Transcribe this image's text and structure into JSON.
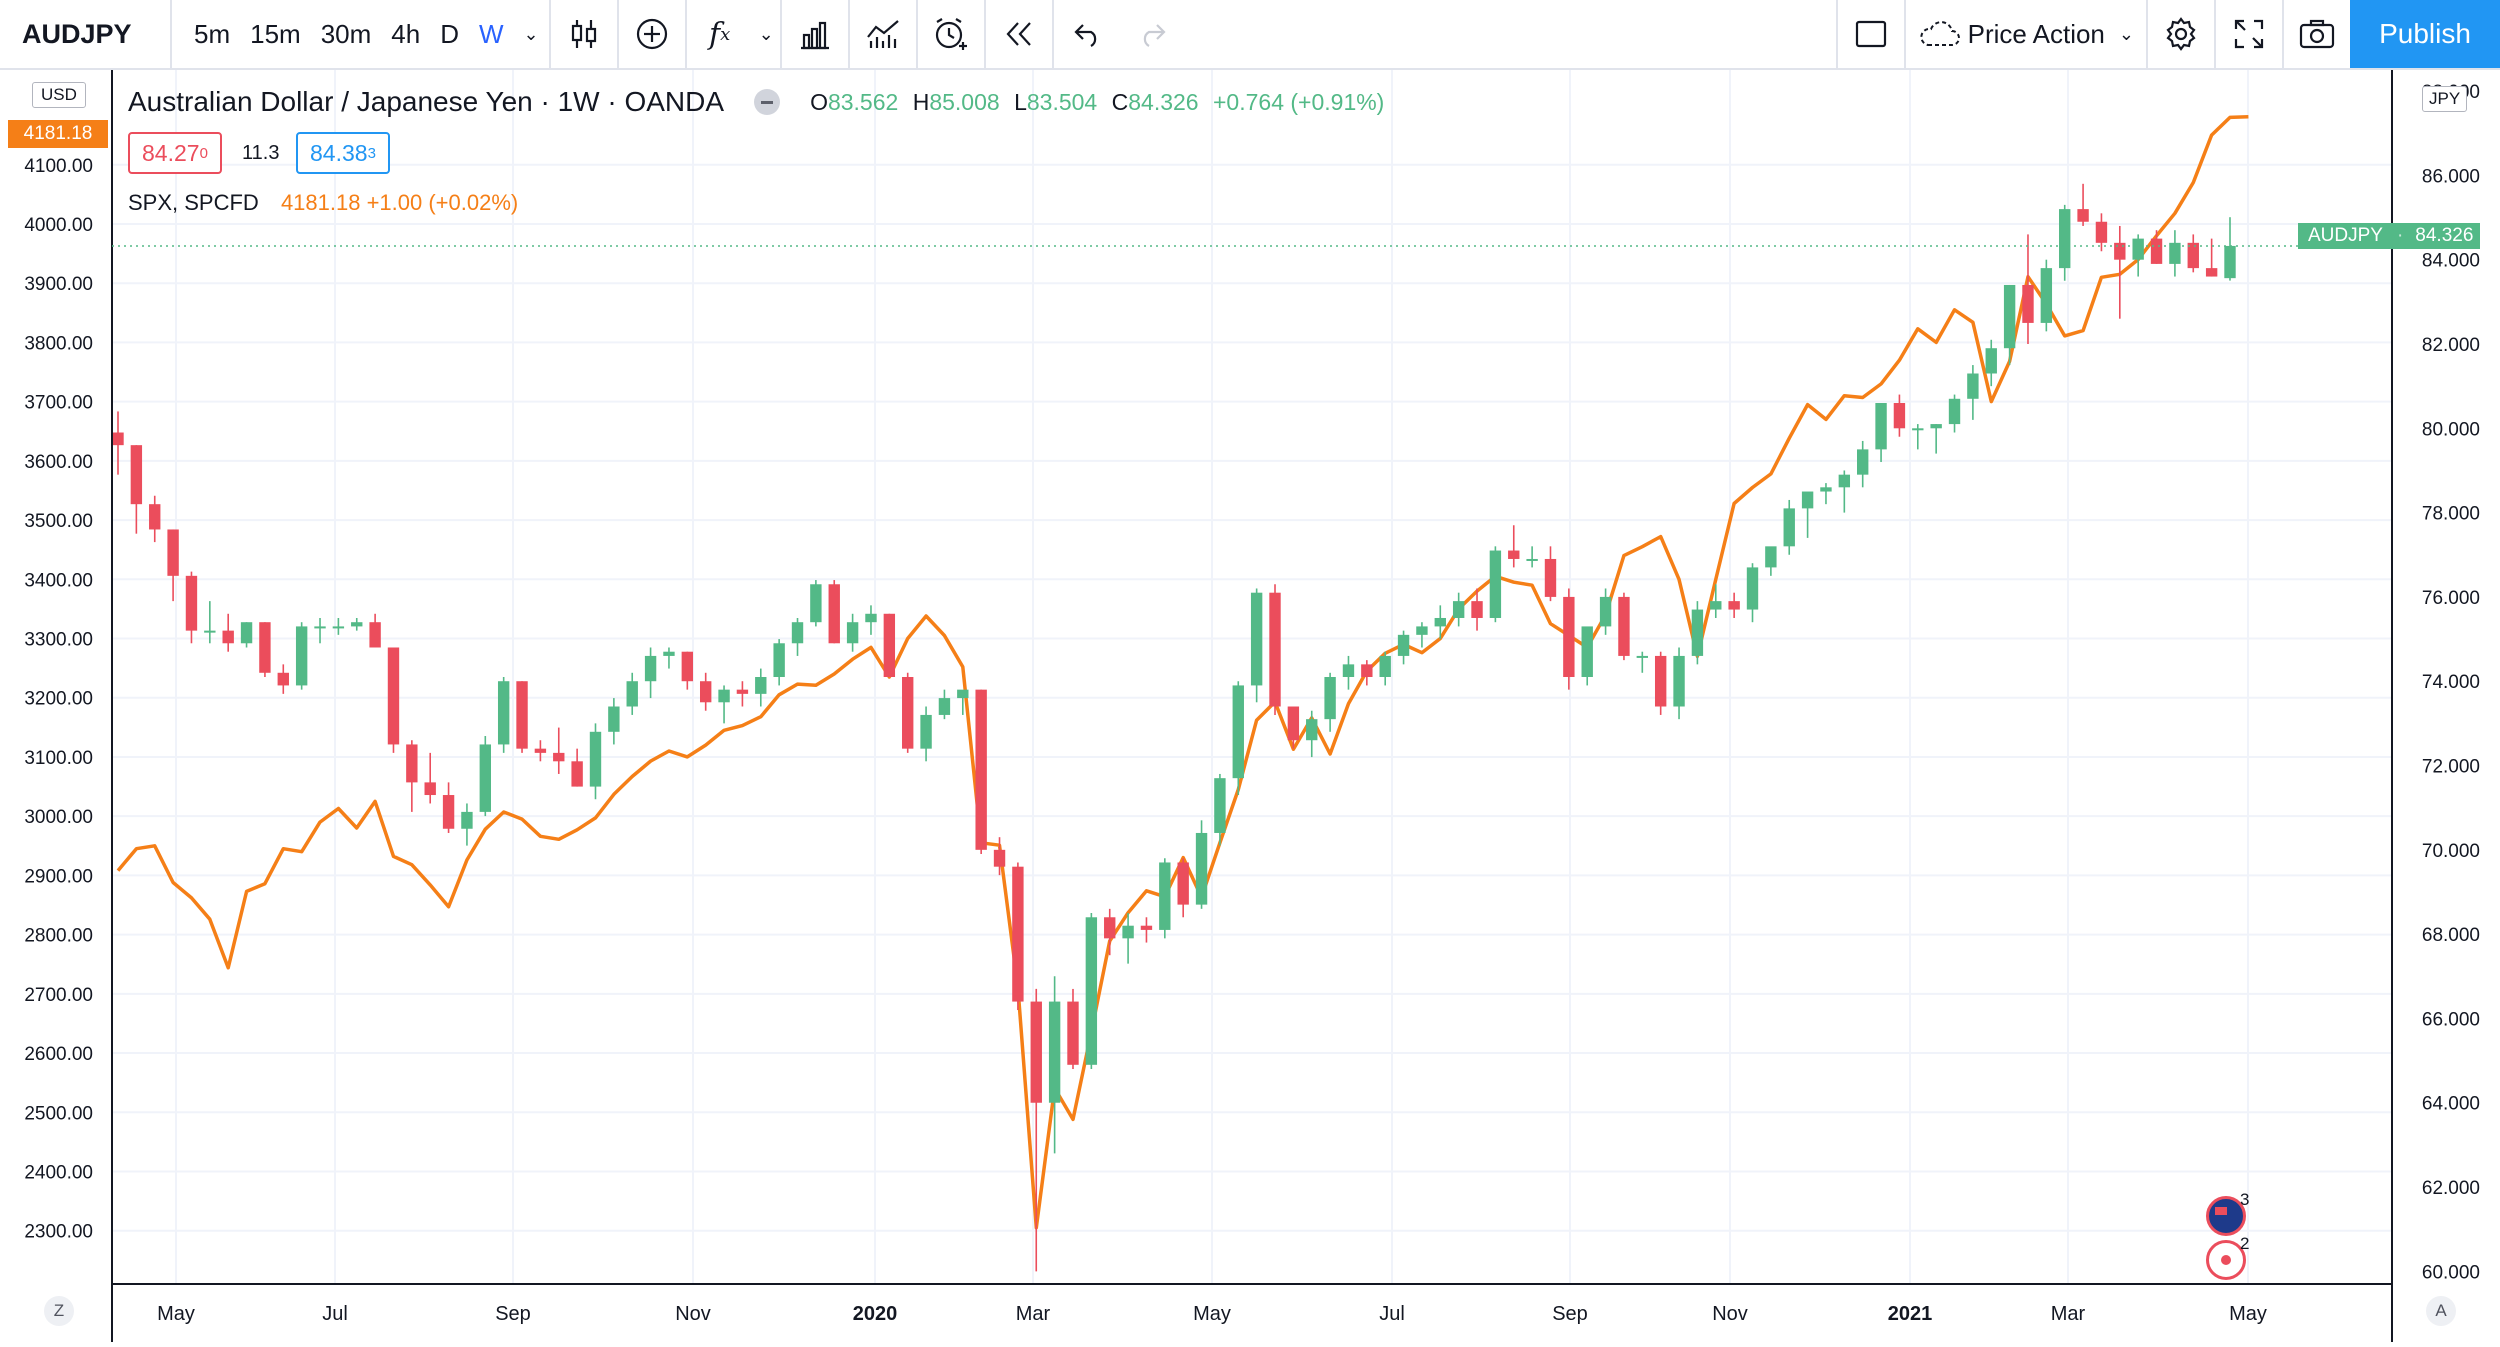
{
  "toolbar": {
    "symbol": "AUDJPY",
    "intervals": [
      "5m",
      "15m",
      "30m",
      "4h",
      "D",
      "W"
    ],
    "active_interval": "W",
    "template": "Price Action",
    "publish_label": "Publish"
  },
  "legend": {
    "title": "Australian Dollar / Japanese Yen · 1W · OANDA",
    "open_label": "O",
    "open": "83.562",
    "high_label": "H",
    "high": "85.008",
    "low_label": "L",
    "low": "83.504",
    "close_label": "C",
    "close": "84.326",
    "change": "+0.764 (+0.91%)",
    "bid": "84.27",
    "bid_sup": "0",
    "spread": "11.3",
    "ask": "84.38",
    "ask_sup": "3",
    "overlay_name": "SPX, SPCFD",
    "overlay_value": "4181.18 +1.00 (+0.02%)"
  },
  "left_axis": {
    "currency": "USD",
    "price_tag": "4181.18",
    "ticks": [
      "4100.00",
      "4000.00",
      "3900.00",
      "3800.00",
      "3700.00",
      "3600.00",
      "3500.00",
      "3400.00",
      "3300.00",
      "3200.00",
      "3100.00",
      "3000.00",
      "2900.00",
      "2800.00",
      "2700.00",
      "2600.00",
      "2500.00",
      "2400.00",
      "2300.00"
    ]
  },
  "right_axis": {
    "currency": "JPY",
    "top_tick": "88.000",
    "ticks": [
      "86.000",
      "84.000",
      "82.000",
      "80.000",
      "78.000",
      "76.000",
      "74.000",
      "72.000",
      "70.000",
      "68.000",
      "66.000",
      "64.000",
      "62.000",
      "60.000"
    ],
    "price_tag_symbol": "AUDJPY",
    "price_tag_value": "84.326"
  },
  "time_axis": {
    "labels": [
      "May",
      "Jul",
      "Sep",
      "Nov",
      "2020",
      "Mar",
      "May",
      "Jul",
      "Sep",
      "Nov",
      "2021",
      "Mar",
      "May"
    ]
  },
  "bottom": {
    "left_btn": "Z",
    "right_btn": "A"
  },
  "events": {
    "au_count": "3",
    "jp_count": "2"
  },
  "colors": {
    "up": "#53b987",
    "down": "#eb4d5c",
    "spx": "#f57f17",
    "accent": "#2962ff"
  },
  "chart_data": {
    "type": "candlestick",
    "title": "Australian Dollar / Japanese Yen · 1W · OANDA",
    "x_range": [
      "2019-04",
      "2021-05"
    ],
    "ylim_right": [
      59.7,
      88.5
    ],
    "ylim_left": [
      2210,
      4260
    ],
    "series": [
      {
        "name": "AUDJPY",
        "candles": [
          [
            79.9,
            80.4,
            78.9,
            79.6
          ],
          [
            79.6,
            79.6,
            77.5,
            78.2
          ],
          [
            78.2,
            78.4,
            77.3,
            77.6
          ],
          [
            77.6,
            77.6,
            75.9,
            76.5
          ],
          [
            76.5,
            76.6,
            74.9,
            75.2
          ],
          [
            75.2,
            75.9,
            74.9,
            75.2
          ],
          [
            75.2,
            75.6,
            74.7,
            74.9
          ],
          [
            74.9,
            75.4,
            74.8,
            75.4
          ],
          [
            75.4,
            75.4,
            74.1,
            74.2
          ],
          [
            74.2,
            74.4,
            73.7,
            73.9
          ],
          [
            73.9,
            75.4,
            73.8,
            75.3
          ],
          [
            75.3,
            75.5,
            74.9,
            75.3
          ],
          [
            75.3,
            75.5,
            75.1,
            75.3
          ],
          [
            75.3,
            75.5,
            75.2,
            75.4
          ],
          [
            75.4,
            75.6,
            74.8,
            74.8
          ],
          [
            74.8,
            74.8,
            72.3,
            72.5
          ],
          [
            72.5,
            72.6,
            70.9,
            71.6
          ],
          [
            71.6,
            72.3,
            71.1,
            71.3
          ],
          [
            71.3,
            71.6,
            70.4,
            70.5
          ],
          [
            70.5,
            71.1,
            70.1,
            70.9
          ],
          [
            70.9,
            72.7,
            70.8,
            72.5
          ],
          [
            72.5,
            74.1,
            72.3,
            74.0
          ],
          [
            74.0,
            74.0,
            72.3,
            72.4
          ],
          [
            72.4,
            72.6,
            72.1,
            72.3
          ],
          [
            72.3,
            72.9,
            71.8,
            72.1
          ],
          [
            72.1,
            72.4,
            71.5,
            71.5
          ],
          [
            71.5,
            73.0,
            71.2,
            72.8
          ],
          [
            72.8,
            73.6,
            72.5,
            73.4
          ],
          [
            73.4,
            74.2,
            73.2,
            74.0
          ],
          [
            74.0,
            74.8,
            73.6,
            74.6
          ],
          [
            74.6,
            74.8,
            74.3,
            74.7
          ],
          [
            74.7,
            74.7,
            73.8,
            74.0
          ],
          [
            74.0,
            74.2,
            73.3,
            73.5
          ],
          [
            73.5,
            73.9,
            73.0,
            73.8
          ],
          [
            73.8,
            74.0,
            73.4,
            73.7
          ],
          [
            73.7,
            74.3,
            73.4,
            74.1
          ],
          [
            74.1,
            75.0,
            73.9,
            74.9
          ],
          [
            74.9,
            75.5,
            74.6,
            75.4
          ],
          [
            75.4,
            76.4,
            75.3,
            76.3
          ],
          [
            76.3,
            76.4,
            74.9,
            74.9
          ],
          [
            74.9,
            75.6,
            74.7,
            75.4
          ],
          [
            75.4,
            75.8,
            75.1,
            75.6
          ],
          [
            75.6,
            75.6,
            74.1,
            74.1
          ],
          [
            74.1,
            74.2,
            72.3,
            72.4
          ],
          [
            72.4,
            73.4,
            72.1,
            73.2
          ],
          [
            73.2,
            73.8,
            73.1,
            73.6
          ],
          [
            73.6,
            73.7,
            73.2,
            73.8
          ],
          [
            73.8,
            73.8,
            69.9,
            70.0
          ],
          [
            70.0,
            70.3,
            69.4,
            69.6
          ],
          [
            69.6,
            69.7,
            66.2,
            66.4
          ],
          [
            66.4,
            66.7,
            60.0,
            64.0
          ],
          [
            64.0,
            67.0,
            62.8,
            66.4
          ],
          [
            66.4,
            66.7,
            64.8,
            64.9
          ],
          [
            64.9,
            68.5,
            64.8,
            68.4
          ],
          [
            68.4,
            68.6,
            67.5,
            67.9
          ],
          [
            67.9,
            68.5,
            67.3,
            68.2
          ],
          [
            68.2,
            68.4,
            67.8,
            68.1
          ],
          [
            68.1,
            69.8,
            67.9,
            69.7
          ],
          [
            69.7,
            69.8,
            68.4,
            68.7
          ],
          [
            68.7,
            70.7,
            68.6,
            70.4
          ],
          [
            70.4,
            71.8,
            70.1,
            71.7
          ],
          [
            71.7,
            74.0,
            71.3,
            73.9
          ],
          [
            73.9,
            76.2,
            73.5,
            76.1
          ],
          [
            76.1,
            76.3,
            73.2,
            73.4
          ],
          [
            73.4,
            73.4,
            72.4,
            72.6
          ],
          [
            72.6,
            73.3,
            72.2,
            73.1
          ],
          [
            73.1,
            74.2,
            72.8,
            74.1
          ],
          [
            74.1,
            74.6,
            73.8,
            74.4
          ],
          [
            74.4,
            74.5,
            73.9,
            74.1
          ],
          [
            74.1,
            74.7,
            73.9,
            74.6
          ],
          [
            74.6,
            75.2,
            74.4,
            75.1
          ],
          [
            75.1,
            75.4,
            74.8,
            75.3
          ],
          [
            75.3,
            75.8,
            75.0,
            75.5
          ],
          [
            75.5,
            76.1,
            75.3,
            75.9
          ],
          [
            75.9,
            76.2,
            75.2,
            75.5
          ],
          [
            75.5,
            77.2,
            75.4,
            77.1
          ],
          [
            77.1,
            77.7,
            76.7,
            76.9
          ],
          [
            76.9,
            77.2,
            76.7,
            76.9
          ],
          [
            76.9,
            77.2,
            75.9,
            76.0
          ],
          [
            76.0,
            76.2,
            73.8,
            74.1
          ],
          [
            74.1,
            75.2,
            73.9,
            75.3
          ],
          [
            75.3,
            76.2,
            75.1,
            76.0
          ],
          [
            76.0,
            76.1,
            74.5,
            74.6
          ],
          [
            74.6,
            74.7,
            74.2,
            74.6
          ],
          [
            74.6,
            74.7,
            73.2,
            73.4
          ],
          [
            73.4,
            74.8,
            73.1,
            74.6
          ],
          [
            74.6,
            75.9,
            74.4,
            75.7
          ],
          [
            75.7,
            76.3,
            75.5,
            75.9
          ],
          [
            75.9,
            76.1,
            75.5,
            75.7
          ],
          [
            75.7,
            76.8,
            75.4,
            76.7
          ],
          [
            76.7,
            77.0,
            76.5,
            77.2
          ],
          [
            77.2,
            78.3,
            77.0,
            78.1
          ],
          [
            78.1,
            78.4,
            77.4,
            78.5
          ],
          [
            78.5,
            78.7,
            78.2,
            78.6
          ],
          [
            78.6,
            79.0,
            78.0,
            78.9
          ],
          [
            78.9,
            79.7,
            78.6,
            79.5
          ],
          [
            79.5,
            80.6,
            79.2,
            80.6
          ],
          [
            80.6,
            80.8,
            79.8,
            80.0
          ],
          [
            80.0,
            80.1,
            79.5,
            80.0
          ],
          [
            80.0,
            80.1,
            79.4,
            80.1
          ],
          [
            80.1,
            80.8,
            79.9,
            80.7
          ],
          [
            80.7,
            81.5,
            80.2,
            81.3
          ],
          [
            81.3,
            82.1,
            81.0,
            81.9
          ],
          [
            81.9,
            83.4,
            81.5,
            83.4
          ],
          [
            83.4,
            84.6,
            82.0,
            82.5
          ],
          [
            82.5,
            84.0,
            82.3,
            83.8
          ],
          [
            83.8,
            85.3,
            83.5,
            85.2
          ],
          [
            85.2,
            85.8,
            84.8,
            84.9
          ],
          [
            84.9,
            85.1,
            84.2,
            84.4
          ],
          [
            84.4,
            84.8,
            82.6,
            84.0
          ],
          [
            84.0,
            84.6,
            83.6,
            84.5
          ],
          [
            84.5,
            84.7,
            83.9,
            83.9
          ],
          [
            83.9,
            84.7,
            83.6,
            84.4
          ],
          [
            84.4,
            84.6,
            83.7,
            83.8
          ],
          [
            83.8,
            84.5,
            83.6,
            83.6
          ],
          [
            83.562,
            85.008,
            83.504,
            84.326
          ]
        ]
      },
      {
        "name": "SPX, SPCFD",
        "values": [
          2908,
          2945,
          2950,
          2888,
          2862,
          2826,
          2744,
          2873,
          2886,
          2945,
          2940,
          2990,
          3013,
          2980,
          3025,
          2932,
          2918,
          2884,
          2847,
          2926,
          2978,
          3007,
          2995,
          2966,
          2961,
          2977,
          2997,
          3037,
          3067,
          3093,
          3110,
          3100,
          3120,
          3145,
          3153,
          3168,
          3205,
          3223,
          3221,
          3240,
          3265,
          3285,
          3235,
          3300,
          3338,
          3305,
          3252,
          2955,
          2951,
          2711,
          2305,
          2541,
          2488,
          2636,
          2789,
          2837,
          2874,
          2864,
          2930,
          2863,
          2955,
          3045,
          3162,
          3193,
          3113,
          3166,
          3105,
          3190,
          3245,
          3275,
          3290,
          3276,
          3300,
          3350,
          3380,
          3405,
          3395,
          3390,
          3325,
          3305,
          3285,
          3340,
          3440,
          3455,
          3472,
          3400,
          3270,
          3400,
          3528,
          3555,
          3578,
          3638,
          3695,
          3670,
          3710,
          3707,
          3730,
          3770,
          3823,
          3800,
          3855,
          3834,
          3700,
          3768,
          3911,
          3865,
          3811,
          3820,
          3910,
          3915,
          3940,
          3980,
          4018,
          4070,
          4150,
          4180,
          4181.18
        ]
      }
    ]
  }
}
